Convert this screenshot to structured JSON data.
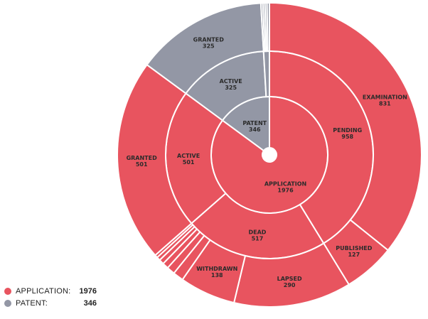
{
  "chart_data": {
    "type": "sunburst",
    "colors": {
      "APPLICATION": "#e8545f",
      "PATENT": "#9397a5"
    },
    "segments": [
      {
        "id": "app",
        "ring": 0,
        "parent": null,
        "category": "APPLICATION",
        "label": "APPLICATION",
        "value": 1976,
        "start": 0,
        "end": 1976
      },
      {
        "id": "patent",
        "ring": 0,
        "parent": null,
        "category": "PATENT",
        "label": "PATENT",
        "value": 346,
        "start": 1976,
        "end": 2322
      },
      {
        "id": "pending",
        "ring": 1,
        "parent": "app",
        "category": "APPLICATION",
        "label": "PENDING",
        "value": 958,
        "start": 0,
        "end": 958
      },
      {
        "id": "dead",
        "ring": 1,
        "parent": "app",
        "category": "APPLICATION",
        "label": "DEAD",
        "value": 517,
        "start": 958,
        "end": 1475
      },
      {
        "id": "app-active",
        "ring": 1,
        "parent": "app",
        "category": "APPLICATION",
        "label": "ACTIVE",
        "value": 501,
        "start": 1475,
        "end": 1976
      },
      {
        "id": "pat-active",
        "ring": 1,
        "parent": "patent",
        "category": "PATENT",
        "label": "ACTIVE",
        "value": 325,
        "start": 1976,
        "end": 2301
      },
      {
        "id": "pat-other",
        "ring": 1,
        "parent": "patent",
        "category": "PATENT",
        "label": "",
        "value": 21,
        "start": 2301,
        "end": 2322
      },
      {
        "id": "examination",
        "ring": 2,
        "parent": "pending",
        "category": "APPLICATION",
        "label": "EXAMINATION",
        "value": 831,
        "start": 0,
        "end": 831
      },
      {
        "id": "published",
        "ring": 2,
        "parent": "pending",
        "category": "APPLICATION",
        "label": "PUBLISHED",
        "value": 127,
        "start": 831,
        "end": 958
      },
      {
        "id": "lapsed",
        "ring": 2,
        "parent": "dead",
        "category": "APPLICATION",
        "label": "LAPSED",
        "value": 290,
        "start": 958,
        "end": 1248
      },
      {
        "id": "withdrawn",
        "ring": 2,
        "parent": "dead",
        "category": "APPLICATION",
        "label": "WITHDRAWN",
        "value": 138,
        "start": 1248,
        "end": 1386
      },
      {
        "id": "dead-s1",
        "ring": 2,
        "parent": "dead",
        "category": "APPLICATION",
        "label": "",
        "value": 26,
        "start": 1386,
        "end": 1412
      },
      {
        "id": "dead-s2",
        "ring": 2,
        "parent": "dead",
        "category": "APPLICATION",
        "label": "",
        "value": 20,
        "start": 1412,
        "end": 1432
      },
      {
        "id": "dead-s3",
        "ring": 2,
        "parent": "dead",
        "category": "APPLICATION",
        "label": "",
        "value": 15,
        "start": 1432,
        "end": 1447
      },
      {
        "id": "dead-s4",
        "ring": 2,
        "parent": "dead",
        "category": "APPLICATION",
        "label": "",
        "value": 12,
        "start": 1447,
        "end": 1459
      },
      {
        "id": "dead-s5",
        "ring": 2,
        "parent": "dead",
        "category": "APPLICATION",
        "label": "",
        "value": 9,
        "start": 1459,
        "end": 1468
      },
      {
        "id": "dead-s6",
        "ring": 2,
        "parent": "dead",
        "category": "APPLICATION",
        "label": "",
        "value": 7,
        "start": 1468,
        "end": 1475
      },
      {
        "id": "granted-app",
        "ring": 2,
        "parent": "app-active",
        "category": "APPLICATION",
        "label": "GRANTED",
        "value": 501,
        "start": 1475,
        "end": 1976
      },
      {
        "id": "granted-pat",
        "ring": 2,
        "parent": "pat-active",
        "category": "PATENT",
        "label": "GRANTED",
        "value": 325,
        "start": 1976,
        "end": 2301
      },
      {
        "id": "pat-s1",
        "ring": 2,
        "parent": "pat-other",
        "category": "PATENT",
        "label": "",
        "value": 5,
        "start": 2301,
        "end": 2306
      },
      {
        "id": "pat-s2",
        "ring": 2,
        "parent": "pat-other",
        "category": "PATENT",
        "label": "",
        "value": 5,
        "start": 2306,
        "end": 2311
      },
      {
        "id": "pat-s3",
        "ring": 2,
        "parent": "pat-other",
        "category": "PATENT",
        "label": "",
        "value": 5,
        "start": 2311,
        "end": 2316
      },
      {
        "id": "pat-s4",
        "ring": 2,
        "parent": "pat-other",
        "category": "PATENT",
        "label": "",
        "value": 6,
        "start": 2316,
        "end": 2322
      }
    ],
    "total": 2322,
    "legend": [
      {
        "name": "APPLICATION:",
        "value": "1976",
        "color": "#e8545f"
      },
      {
        "name": "PATENT:",
        "value": "346",
        "color": "#9397a5"
      }
    ]
  }
}
